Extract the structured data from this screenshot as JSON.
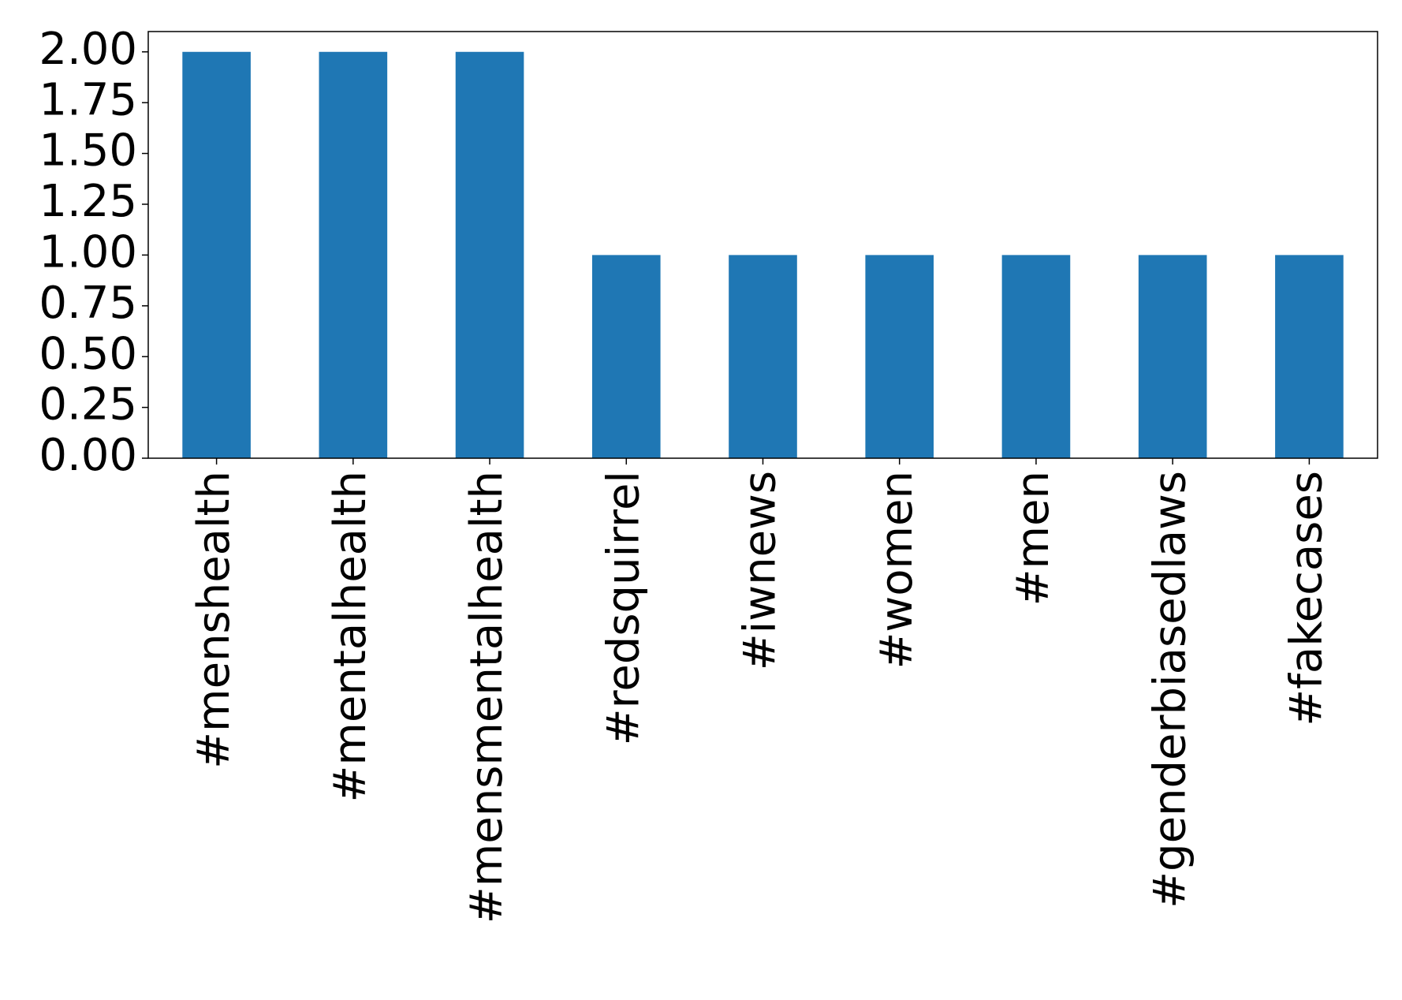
{
  "chart_data": {
    "type": "bar",
    "categories": [
      "#menshealth",
      "#mentalhealth",
      "#mensmentalhealth",
      "#redsquirrel",
      "#iwnews",
      "#women",
      "#men",
      "#genderbiasedlaws",
      "#fakecases"
    ],
    "values": [
      2,
      2,
      2,
      1,
      1,
      1,
      1,
      1,
      1
    ],
    "color": "#1f77b4",
    "ylim": [
      0,
      2.1
    ],
    "yticks": [
      {
        "value": 0,
        "label": "0.00"
      },
      0.25,
      {
        "value": 0.5,
        "label": "0.50"
      },
      0.75,
      {
        "value": 1,
        "label": "1.00"
      },
      1.25,
      {
        "value": 1.5,
        "label": "1.50"
      },
      1.75,
      {
        "value": 2,
        "label": "2.00"
      }
    ],
    "grid": false
  }
}
